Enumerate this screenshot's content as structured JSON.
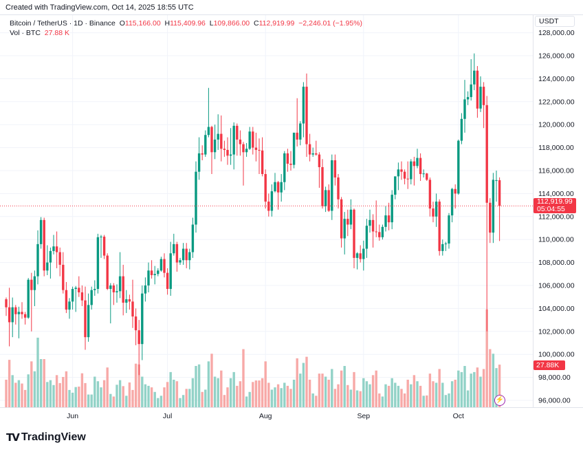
{
  "header": {
    "created": "Created with TradingView.com, Oct 14, 2025 18:55 UTC"
  },
  "legend": {
    "symbol": "Bitcoin / TetherUS · 1D · Binance",
    "o_label": "O",
    "o": "115,166.00",
    "h_label": "H",
    "h": "115,409.96",
    "l_label": "L",
    "l": "109,866.00",
    "c_label": "C",
    "c": "112,919.99",
    "change": "−2,246.01 (−1.95%)",
    "vol_label": "Vol · BTC",
    "vol": "27.88 K"
  },
  "price_axis": {
    "currency": "USDT",
    "last_price": "112,919.99",
    "countdown": "05:04:55",
    "last_volume": "27.88K"
  },
  "footer": {
    "brand": "TradingView"
  },
  "colors": {
    "up": "#089981",
    "down": "#f23645",
    "up_volume": "#92d2c7",
    "down_volume": "#f7a9a7",
    "grid": "#f0f3fa"
  },
  "chart_data": {
    "type": "candlestick",
    "title": "Bitcoin / TetherUS · 1D · Binance",
    "volume_unit": "K BTC",
    "ylim": [
      95000,
      129000
    ],
    "y_ticks": [
      "96,000.00",
      "98,000.00",
      "100,000.00",
      "102,000.00",
      "104,000.00",
      "106,000.00",
      "108,000.00",
      "110,000.00",
      "112,000.00",
      "114,000.00",
      "116,000.00",
      "118,000.00",
      "120,000.00",
      "122,000.00",
      "124,000.00",
      "126,000.00",
      "128,000.00"
    ],
    "x_ticks": [
      {
        "label": "Jun",
        "date": "2025-06-01"
      },
      {
        "label": "Jul",
        "date": "2025-07-01"
      },
      {
        "label": "Aug",
        "date": "2025-08-01"
      },
      {
        "label": "Sep",
        "date": "2025-09-01"
      },
      {
        "label": "Oct",
        "date": "2025-10-01"
      }
    ],
    "columns": [
      "date",
      "open",
      "high",
      "low",
      "close",
      "volume"
    ],
    "candles": [
      [
        "2025-05-11",
        104800,
        104950,
        103350,
        104100,
        18
      ],
      [
        "2025-05-12",
        104100,
        105800,
        100700,
        102800,
        31
      ],
      [
        "2025-05-13",
        102800,
        104950,
        101500,
        104100,
        21
      ],
      [
        "2025-05-14",
        104100,
        104300,
        102600,
        103500,
        16
      ],
      [
        "2025-05-15",
        103500,
        104150,
        101400,
        103700,
        17.7
      ],
      [
        "2025-05-16",
        103700,
        104550,
        103100,
        103500,
        15.5
      ],
      [
        "2025-05-17",
        103500,
        103700,
        102600,
        103200,
        11.3
      ],
      [
        "2025-05-18",
        103200,
        106650,
        103100,
        106500,
        21.5
      ],
      [
        "2025-05-19",
        106500,
        107100,
        102000,
        105600,
        30
      ],
      [
        "2025-05-20",
        105600,
        107300,
        104200,
        106800,
        23.5
      ],
      [
        "2025-05-21",
        106800,
        110800,
        106100,
        109600,
        45.5
      ],
      [
        "2025-05-22",
        109600,
        111950,
        109200,
        111700,
        31.5
      ],
      [
        "2025-05-23",
        111700,
        111900,
        106800,
        107300,
        31.5
      ],
      [
        "2025-05-24",
        107300,
        109500,
        106900,
        108000,
        16.5
      ],
      [
        "2025-05-25",
        108000,
        109300,
        106600,
        109000,
        17.7
      ],
      [
        "2025-05-26",
        109000,
        110400,
        108700,
        109400,
        14.5
      ],
      [
        "2025-05-27",
        109400,
        110700,
        107500,
        108900,
        21
      ],
      [
        "2025-05-28",
        108900,
        109300,
        106800,
        107800,
        15.8
      ],
      [
        "2025-05-29",
        107800,
        108900,
        105300,
        105600,
        19.8
      ],
      [
        "2025-05-30",
        105600,
        106300,
        103600,
        103900,
        23.5
      ],
      [
        "2025-05-31",
        103900,
        104900,
        103100,
        104600,
        11.3
      ],
      [
        "2025-06-01",
        104600,
        105900,
        103900,
        105700,
        9.5
      ],
      [
        "2025-06-02",
        105700,
        105950,
        103700,
        105800,
        13.2
      ],
      [
        "2025-06-03",
        105800,
        106800,
        105000,
        105400,
        13.5
      ],
      [
        "2025-06-04",
        105400,
        106000,
        104200,
        104700,
        22.2
      ],
      [
        "2025-06-05",
        104700,
        105900,
        100400,
        101500,
        15.8
      ],
      [
        "2025-06-06",
        101500,
        105300,
        101100,
        104300,
        8.3
      ],
      [
        "2025-06-07",
        104300,
        105900,
        103900,
        105600,
        8.3
      ],
      [
        "2025-06-08",
        105600,
        106450,
        105100,
        105700,
        20
      ],
      [
        "2025-06-09",
        105700,
        110500,
        105300,
        110200,
        17
      ],
      [
        "2025-06-10",
        110200,
        110400,
        108400,
        110250,
        13
      ],
      [
        "2025-06-11",
        110250,
        110400,
        108300,
        108600,
        17.7
      ],
      [
        "2025-06-12",
        108600,
        108800,
        105600,
        105700,
        26
      ],
      [
        "2025-06-13",
        105700,
        106200,
        102700,
        106000,
        8.7
      ],
      [
        "2025-06-14",
        106000,
        106200,
        104300,
        105400,
        7
      ],
      [
        "2025-06-15",
        105400,
        106100,
        104500,
        105500,
        14.7
      ],
      [
        "2025-06-16",
        105500,
        108900,
        104900,
        106800,
        17.7
      ],
      [
        "2025-06-17",
        106800,
        107800,
        103400,
        104500,
        13.8
      ],
      [
        "2025-06-18",
        104500,
        105600,
        103600,
        104800,
        7.5
      ],
      [
        "2025-06-19",
        104800,
        105200,
        103900,
        104600,
        16.2
      ],
      [
        "2025-06-20",
        104600,
        106500,
        102300,
        103300,
        11.3
      ],
      [
        "2025-06-21",
        103300,
        104000,
        100800,
        102100,
        28.5
      ],
      [
        "2025-06-22",
        102100,
        103000,
        98200,
        100900,
        28
      ],
      [
        "2025-06-23",
        100900,
        106000,
        99500,
        105300,
        20
      ],
      [
        "2025-06-24",
        105300,
        106700,
        104600,
        106000,
        15
      ],
      [
        "2025-06-25",
        106000,
        108000,
        105400,
        107300,
        14
      ],
      [
        "2025-06-26",
        107300,
        108200,
        106600,
        106900,
        13
      ],
      [
        "2025-06-27",
        106900,
        107700,
        106100,
        107000,
        10
      ],
      [
        "2025-06-28",
        107000,
        107500,
        106800,
        107300,
        6
      ],
      [
        "2025-06-29",
        107300,
        108500,
        107200,
        108300,
        7.5
      ],
      [
        "2025-06-30",
        108300,
        108800,
        106700,
        107100,
        13
      ],
      [
        "2025-07-01",
        107100,
        107500,
        105200,
        105700,
        16.5
      ],
      [
        "2025-07-02",
        105700,
        109800,
        105100,
        108800,
        23
      ],
      [
        "2025-07-03",
        108800,
        110500,
        108600,
        109600,
        18
      ],
      [
        "2025-07-04",
        109600,
        109800,
        107200,
        108000,
        17
      ],
      [
        "2025-07-05",
        108000,
        108400,
        107800,
        108200,
        6
      ],
      [
        "2025-07-06",
        108200,
        109700,
        107800,
        109200,
        8
      ],
      [
        "2025-07-07",
        109200,
        109700,
        107500,
        108200,
        12
      ],
      [
        "2025-07-08",
        108200,
        109200,
        107400,
        108900,
        12
      ],
      [
        "2025-07-09",
        108900,
        111900,
        108400,
        111300,
        19
      ],
      [
        "2025-07-10",
        111300,
        116800,
        110600,
        115900,
        27
      ],
      [
        "2025-07-11",
        115900,
        118900,
        115200,
        117500,
        28
      ],
      [
        "2025-07-12",
        117500,
        118200,
        116900,
        117400,
        10
      ],
      [
        "2025-07-13",
        117400,
        119500,
        117200,
        119100,
        11.5
      ],
      [
        "2025-07-14",
        119100,
        123200,
        118900,
        119800,
        30
      ],
      [
        "2025-07-15",
        119800,
        119900,
        115700,
        117600,
        35
      ],
      [
        "2025-07-16",
        117600,
        120000,
        117000,
        118700,
        20
      ],
      [
        "2025-07-17",
        118700,
        120900,
        117800,
        119200,
        19
      ],
      [
        "2025-07-18",
        119200,
        120800,
        116800,
        117900,
        24
      ],
      [
        "2025-07-19",
        117900,
        118600,
        117200,
        117800,
        8
      ],
      [
        "2025-07-20",
        117800,
        118900,
        116500,
        117300,
        13
      ],
      [
        "2025-07-21",
        117300,
        119700,
        116500,
        117400,
        19
      ],
      [
        "2025-07-22",
        117400,
        120200,
        116100,
        119900,
        23
      ],
      [
        "2025-07-23",
        119900,
        120100,
        117300,
        118700,
        14
      ],
      [
        "2025-07-24",
        118700,
        119500,
        117300,
        118300,
        17
      ],
      [
        "2025-07-25",
        118300,
        118500,
        114700,
        117600,
        38
      ],
      [
        "2025-07-26",
        117600,
        118400,
        117200,
        117900,
        7
      ],
      [
        "2025-07-27",
        117900,
        119800,
        117800,
        119400,
        10
      ],
      [
        "2025-07-28",
        119400,
        119800,
        117400,
        118000,
        16.5
      ],
      [
        "2025-07-29",
        118000,
        119300,
        116800,
        117800,
        17.5
      ],
      [
        "2025-07-30",
        117800,
        118800,
        115700,
        117750,
        17.5
      ],
      [
        "2025-07-31",
        117750,
        118900,
        115500,
        115700,
        19
      ],
      [
        "2025-08-01",
        115700,
        116100,
        112700,
        113300,
        30
      ],
      [
        "2025-08-02",
        113300,
        114000,
        112000,
        112500,
        16
      ],
      [
        "2025-08-03",
        112500,
        114800,
        112000,
        114200,
        11.5
      ],
      [
        "2025-08-04",
        114200,
        115800,
        114100,
        115000,
        13
      ],
      [
        "2025-08-05",
        115000,
        115100,
        112600,
        114100,
        15
      ],
      [
        "2025-08-06",
        114100,
        115700,
        113300,
        115000,
        12.5
      ],
      [
        "2025-08-07",
        115000,
        117700,
        114300,
        117500,
        16
      ],
      [
        "2025-08-08",
        117500,
        117900,
        115900,
        116600,
        14
      ],
      [
        "2025-08-09",
        116600,
        117700,
        116000,
        116500,
        12
      ],
      [
        "2025-08-10",
        116500,
        119300,
        116200,
        119300,
        18
      ],
      [
        "2025-08-11",
        119300,
        122300,
        118100,
        118700,
        32
      ],
      [
        "2025-08-12",
        118700,
        120300,
        118200,
        120100,
        22
      ],
      [
        "2025-08-13",
        120100,
        123700,
        118900,
        123300,
        29
      ],
      [
        "2025-08-14",
        123300,
        124450,
        117200,
        118300,
        33
      ],
      [
        "2025-08-15",
        118300,
        119200,
        116800,
        117400,
        18
      ],
      [
        "2025-08-16",
        117400,
        118000,
        117200,
        117500,
        9
      ],
      [
        "2025-08-17",
        117500,
        118600,
        117300,
        117400,
        7.5
      ],
      [
        "2025-08-18",
        117400,
        117600,
        114500,
        116300,
        22
      ],
      [
        "2025-08-19",
        116300,
        117000,
        112700,
        112900,
        22
      ],
      [
        "2025-08-20",
        112900,
        114600,
        112400,
        114300,
        20
      ],
      [
        "2025-08-21",
        114300,
        114800,
        112400,
        112500,
        18
      ],
      [
        "2025-08-22",
        112500,
        117400,
        111700,
        116900,
        25
      ],
      [
        "2025-08-23",
        116900,
        117400,
        114700,
        115400,
        12
      ],
      [
        "2025-08-24",
        115400,
        115700,
        112700,
        113500,
        15
      ],
      [
        "2025-08-25",
        113500,
        113700,
        109300,
        110100,
        24
      ],
      [
        "2025-08-26",
        110100,
        112400,
        108700,
        111800,
        27
      ],
      [
        "2025-08-27",
        111800,
        112600,
        110300,
        111300,
        14.5
      ],
      [
        "2025-08-28",
        111300,
        113500,
        110900,
        112600,
        11.5
      ],
      [
        "2025-08-29",
        112600,
        112700,
        107500,
        108400,
        23
      ],
      [
        "2025-08-30",
        108400,
        108900,
        107400,
        108800,
        11
      ],
      [
        "2025-08-31",
        108800,
        109500,
        108000,
        108300,
        10.5
      ],
      [
        "2025-09-01",
        108300,
        109900,
        107300,
        109200,
        19
      ],
      [
        "2025-09-02",
        109200,
        111800,
        108400,
        111200,
        17
      ],
      [
        "2025-09-03",
        111200,
        112600,
        110600,
        111700,
        15
      ],
      [
        "2025-09-04",
        111700,
        112200,
        109300,
        110700,
        21
      ],
      [
        "2025-09-05",
        110700,
        113400,
        110200,
        110650,
        24
      ],
      [
        "2025-09-06",
        110650,
        111300,
        109900,
        110200,
        9
      ],
      [
        "2025-09-07",
        110200,
        111300,
        110000,
        111100,
        7
      ],
      [
        "2025-09-08",
        111100,
        112900,
        110700,
        112100,
        15
      ],
      [
        "2025-09-09",
        112100,
        113200,
        110800,
        111500,
        14
      ],
      [
        "2025-09-10",
        111500,
        114300,
        110900,
        113900,
        19
      ],
      [
        "2025-09-11",
        113900,
        115200,
        113500,
        115500,
        16
      ],
      [
        "2025-09-12",
        115500,
        116700,
        114300,
        116100,
        14
      ],
      [
        "2025-09-13",
        116100,
        116800,
        115200,
        115900,
        12
      ],
      [
        "2025-09-14",
        115900,
        116100,
        114800,
        115300,
        9
      ],
      [
        "2025-09-15",
        115300,
        116800,
        114400,
        115250,
        18
      ],
      [
        "2025-09-16",
        115250,
        117000,
        114800,
        116800,
        15
      ],
      [
        "2025-09-17",
        116800,
        117200,
        114700,
        116400,
        21
      ],
      [
        "2025-09-18",
        116400,
        117900,
        116200,
        117100,
        17
      ],
      [
        "2025-09-19",
        117100,
        117500,
        115100,
        115700,
        14
      ],
      [
        "2025-09-20",
        115700,
        116100,
        115400,
        115750,
        7.5
      ],
      [
        "2025-09-21",
        115750,
        115800,
        115100,
        115200,
        7.7
      ],
      [
        "2025-09-22",
        115200,
        115400,
        112000,
        112700,
        22
      ],
      [
        "2025-09-23",
        112700,
        113300,
        111500,
        112000,
        17
      ],
      [
        "2025-09-24",
        112000,
        114000,
        111100,
        113300,
        16
      ],
      [
        "2025-09-25",
        113300,
        113500,
        108600,
        109000,
        25
      ],
      [
        "2025-09-26",
        109000,
        110000,
        108600,
        109600,
        16
      ],
      [
        "2025-09-27",
        109600,
        109800,
        109000,
        109650,
        8
      ],
      [
        "2025-09-28",
        109650,
        112300,
        109200,
        112100,
        9
      ],
      [
        "2025-09-29",
        112100,
        114500,
        111500,
        114400,
        17
      ],
      [
        "2025-09-30",
        114400,
        114800,
        112700,
        114000,
        18
      ],
      [
        "2025-10-01",
        114000,
        118700,
        113900,
        118600,
        24
      ],
      [
        "2025-10-02",
        118600,
        121000,
        118300,
        120500,
        23
      ],
      [
        "2025-10-03",
        120500,
        123900,
        119300,
        122200,
        27
      ],
      [
        "2025-10-04",
        122200,
        122900,
        121700,
        122400,
        11
      ],
      [
        "2025-10-05",
        122400,
        125700,
        122100,
        123500,
        22
      ],
      [
        "2025-10-06",
        123500,
        126200,
        123000,
        124700,
        23
      ],
      [
        "2025-10-07",
        124700,
        125100,
        120600,
        121400,
        26
      ],
      [
        "2025-10-08",
        121400,
        124200,
        121100,
        123300,
        20
      ],
      [
        "2025-10-09",
        123300,
        123700,
        119700,
        121700,
        25
      ],
      [
        "2025-10-10",
        121700,
        122500,
        102000,
        113200,
        64
      ],
      [
        "2025-10-11",
        113200,
        113600,
        109700,
        110600,
        38
      ],
      [
        "2025-10-12",
        110600,
        115800,
        109700,
        115200,
        35
      ],
      [
        "2025-10-13",
        115100,
        116000,
        113300,
        115166,
        25.6
      ],
      [
        "2025-10-14",
        115166,
        115409.96,
        109866,
        112919.99,
        27.88
      ]
    ]
  }
}
